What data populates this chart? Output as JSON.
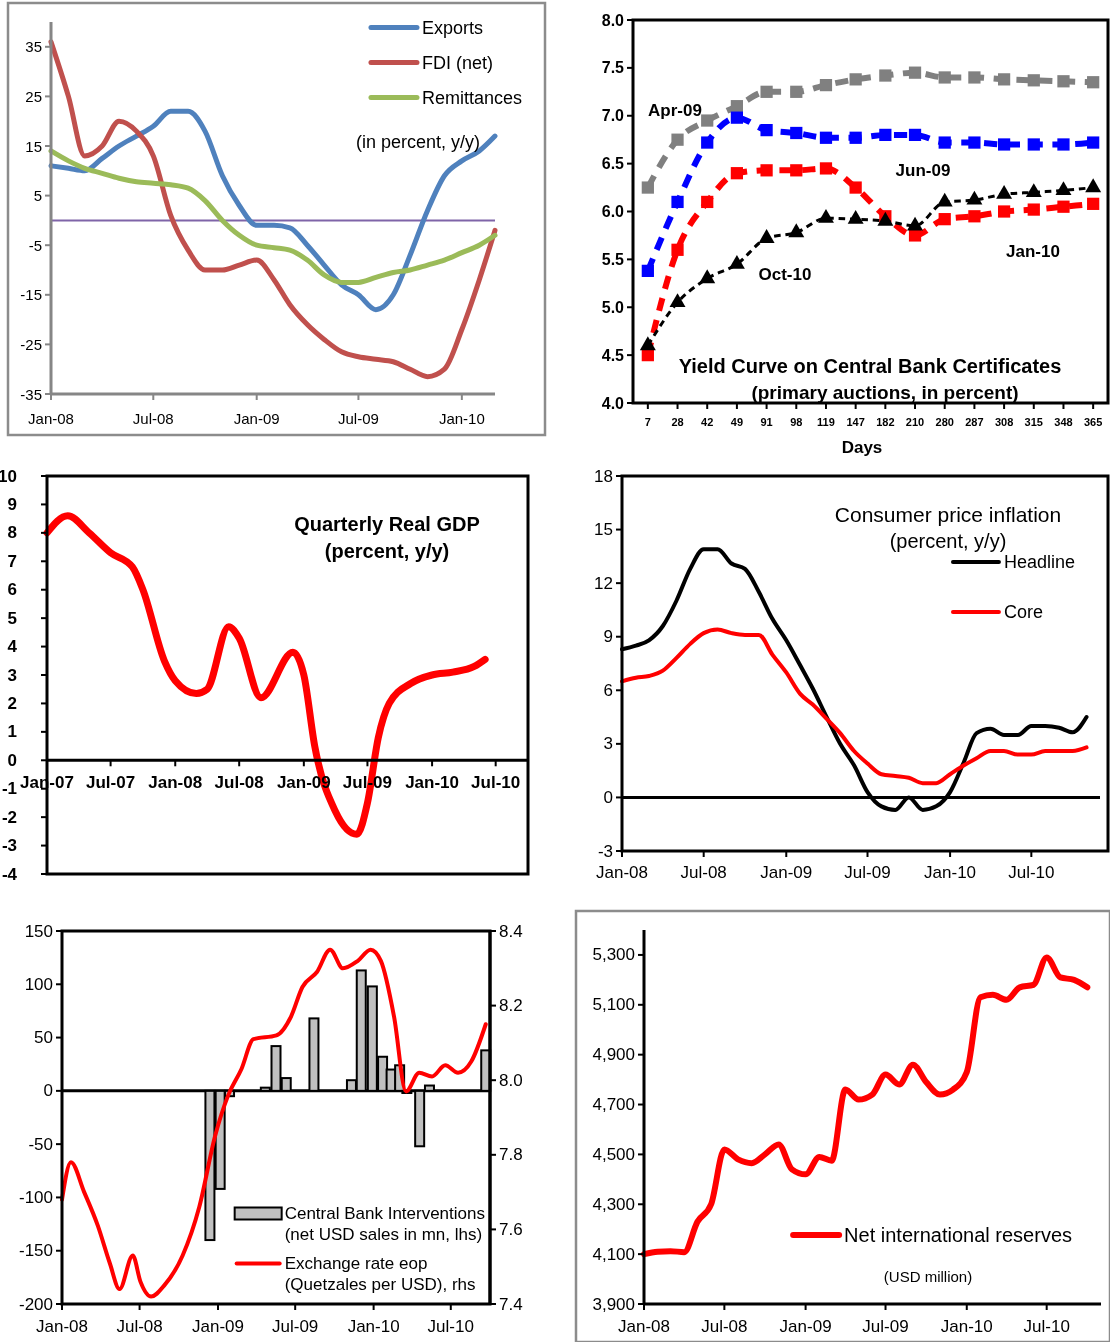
{
  "chart_data": [
    {
      "type": "line",
      "x": [
        "2008-01",
        "2008-02",
        "2008-03",
        "2008-04",
        "2008-05",
        "2008-06",
        "2008-07",
        "2008-08",
        "2008-09",
        "2008-10",
        "2008-11",
        "2008-12",
        "2009-01",
        "2009-02",
        "2009-03",
        "2009-04",
        "2009-05",
        "2009-06",
        "2009-07",
        "2009-08",
        "2009-09",
        "2009-10",
        "2009-11",
        "2009-12",
        "2010-01",
        "2010-02",
        "2010-03"
      ],
      "series": [
        {
          "name": "Exports",
          "color": "#4f81bd",
          "values": [
            11,
            10.5,
            10,
            12.5,
            15,
            17,
            19,
            22,
            22,
            18,
            9,
            3,
            -1,
            -1,
            -1.5,
            -5,
            -9,
            -13,
            -15,
            -18,
            -15,
            -7,
            2,
            9,
            12,
            14,
            17
          ]
        },
        {
          "name": "FDI (net)",
          "color": "#c0504d",
          "values": [
            36,
            25,
            13,
            15,
            20,
            18,
            13,
            1,
            -6,
            -10,
            -10,
            -9,
            -8,
            -12,
            -17,
            -21,
            -24,
            -26.5,
            -27.5,
            -28,
            -28.5,
            -30,
            -31.5,
            -30,
            -22,
            -12,
            -2
          ]
        },
        {
          "name": "Remittances",
          "color": "#9bbb59",
          "values": [
            14,
            12,
            10.5,
            9.5,
            8.5,
            7.8,
            7.5,
            7.2,
            6.5,
            4,
            0,
            -3,
            -5,
            -5.5,
            -6,
            -8,
            -11,
            -12.5,
            -12.5,
            -11.5,
            -10.5,
            -10,
            -9,
            -8,
            -6.5,
            -5,
            -3
          ]
        }
      ],
      "xlim": [
        "2008-01",
        "2010-03"
      ],
      "xticks": [
        {
          "value": "2008-01",
          "label": "Jan-08"
        },
        {
          "value": "2008-07",
          "label": "Jul-08"
        },
        {
          "value": "2009-01",
          "label": "Jan-09"
        },
        {
          "value": "2009-07",
          "label": "Jul-09"
        },
        {
          "value": "2010-01",
          "label": "Jan-10"
        }
      ],
      "ylim": [
        -35,
        40
      ],
      "yticks": [
        -35,
        -25,
        -15,
        -5,
        5,
        15,
        25,
        35
      ],
      "ref_lines": [
        {
          "axis": "y",
          "value": 0,
          "color": "#7f64a8"
        }
      ],
      "legend": "top right",
      "annotations": [
        "(in percent, y/y)"
      ]
    },
    {
      "type": "line",
      "title": "Yield Curve on Central Bank Certificates",
      "subtitle": "(primary auctions, in percent)",
      "xlabel": "Days",
      "categories": [
        "7",
        "28",
        "42",
        "49",
        "91",
        "98",
        "119",
        "147",
        "182",
        "210",
        "280",
        "287",
        "308",
        "315",
        "348",
        "365"
      ],
      "series": [
        {
          "name": "Apr-09",
          "color": "#808080",
          "values": [
            6.25,
            6.75,
            6.95,
            7.1,
            7.25,
            7.25,
            7.32,
            7.38,
            7.42,
            7.45,
            7.4,
            7.4,
            7.38,
            7.37,
            7.36,
            7.35
          ]
        },
        {
          "name": "Jun-09",
          "color": "#0000ff",
          "values": [
            5.38,
            6.1,
            6.72,
            6.98,
            6.85,
            6.82,
            6.77,
            6.77,
            6.8,
            6.8,
            6.72,
            6.72,
            6.7,
            6.7,
            6.7,
            6.72
          ]
        },
        {
          "name": "Jan-10",
          "color": "#ff0000",
          "values": [
            4.5,
            5.6,
            6.1,
            6.4,
            6.43,
            6.43,
            6.45,
            6.25,
            5.95,
            5.75,
            5.92,
            5.95,
            6.0,
            6.02,
            6.05,
            6.08
          ]
        },
        {
          "name": "Oct-10",
          "color": "#000000",
          "marker": "triangle",
          "values": [
            4.6,
            5.05,
            5.3,
            5.45,
            5.72,
            5.78,
            5.93,
            5.92,
            5.9,
            5.85,
            6.1,
            6.12,
            6.18,
            6.2,
            6.22,
            6.25
          ]
        }
      ],
      "ylim": [
        4,
        8
      ],
      "yticks": [
        {
          "value": 4,
          "label": "4.0"
        },
        4.5,
        {
          "value": 5,
          "label": "5.0"
        },
        5.5,
        {
          "value": 6,
          "label": "6.0"
        },
        6.5,
        {
          "value": 7,
          "label": "7.0"
        },
        7.5,
        {
          "value": 8,
          "label": "8.0"
        }
      ],
      "marker": "square",
      "line_style": "dashed"
    },
    {
      "type": "line",
      "title": "Quarterly Real GDP",
      "subtitle": "(percent, y/y)",
      "color": "#ff0000",
      "x": [
        "2007-01",
        "2007-03",
        "2007-05",
        "2007-07",
        "2007-09",
        "2007-10",
        "2007-12",
        "2008-01",
        "2008-03",
        "2008-04",
        "2008-06",
        "2008-07",
        "2008-09",
        "2008-12",
        "2009-01",
        "2009-02",
        "2009-04",
        "2009-06",
        "2009-07",
        "2009-08",
        "2009-09",
        "2009-11",
        "2010-01",
        "2010-03",
        "2010-05",
        "2010-06"
      ],
      "values": [
        8.0,
        8.6,
        8.0,
        7.3,
        6.8,
        6.0,
        3.5,
        2.8,
        2.35,
        2.5,
        4.7,
        4.3,
        2.2,
        3.8,
        3.0,
        0.5,
        -1.8,
        -2.6,
        -1.5,
        0.8,
        2.0,
        2.7,
        3.0,
        3.1,
        3.3,
        3.55
      ],
      "xlim": [
        "2007-01",
        "2010-10"
      ],
      "xticks": [
        {
          "value": "2007-01",
          "label": "Jan-07"
        },
        {
          "value": "2007-07",
          "label": "Jul-07"
        },
        {
          "value": "2008-01",
          "label": "Jan-08"
        },
        {
          "value": "2008-07",
          "label": "Jul-08"
        },
        {
          "value": "2009-01",
          "label": "Jan-09"
        },
        {
          "value": "2009-07",
          "label": "Jul-09"
        },
        {
          "value": "2010-01",
          "label": "Jan-10"
        },
        {
          "value": "2010-07",
          "label": "Jul-10"
        }
      ],
      "ylim": [
        -4,
        10
      ],
      "yticks": [
        -4,
        -3,
        -2,
        -1,
        0,
        1,
        2,
        3,
        4,
        5,
        6,
        7,
        8,
        9,
        10
      ]
    },
    {
      "type": "line",
      "title": "Consumer price inflation",
      "subtitle": "(percent, y/y)",
      "x": [
        "2008-01",
        "2008-02",
        "2008-03",
        "2008-04",
        "2008-05",
        "2008-06",
        "2008-07",
        "2008-08",
        "2008-09",
        "2008-10",
        "2008-11",
        "2008-12",
        "2009-01",
        "2009-02",
        "2009-03",
        "2009-04",
        "2009-05",
        "2009-06",
        "2009-07",
        "2009-08",
        "2009-09",
        "2009-10",
        "2009-11",
        "2009-12",
        "2010-01",
        "2010-02",
        "2010-03",
        "2010-04",
        "2010-05",
        "2010-06",
        "2010-07",
        "2010-08",
        "2010-09",
        "2010-10",
        "2010-11"
      ],
      "series": [
        {
          "name": "Headline",
          "color": "#000000",
          "values": [
            8.3,
            8.5,
            8.8,
            9.6,
            11.0,
            12.8,
            13.9,
            13.9,
            13.1,
            12.8,
            11.5,
            10.0,
            8.8,
            7.4,
            6.1,
            4.5,
            3.0,
            1.8,
            0.3,
            -0.5,
            -0.7,
            0.0,
            -0.7,
            -0.5,
            0.3,
            2.0,
            3.6,
            3.85,
            3.5,
            3.5,
            4.0,
            4.0,
            3.9,
            3.65,
            4.5
          ]
        },
        {
          "name": "Core",
          "color": "#ff0000",
          "values": [
            6.5,
            6.7,
            6.8,
            7.1,
            7.8,
            8.6,
            9.2,
            9.4,
            9.2,
            9.1,
            9.1,
            8.0,
            7.0,
            5.8,
            5.2,
            4.4,
            3.6,
            2.6,
            1.9,
            1.3,
            1.2,
            1.1,
            0.8,
            0.8,
            1.3,
            1.8,
            2.2,
            2.6,
            2.6,
            2.4,
            2.4,
            2.6,
            2.6,
            2.6,
            2.8
          ]
        }
      ],
      "xlim": [
        "2008-01",
        "2010-12"
      ],
      "xticks": [
        {
          "value": "2008-01",
          "label": "Jan-08"
        },
        {
          "value": "2008-07",
          "label": "Jul-08"
        },
        {
          "value": "2009-01",
          "label": "Jan-09"
        },
        {
          "value": "2009-07",
          "label": "Jul-09"
        },
        {
          "value": "2010-01",
          "label": "Jan-10"
        },
        {
          "value": "2010-07",
          "label": "Jul-10"
        }
      ],
      "ylim": [
        -3,
        18
      ],
      "yticks": [
        -3,
        0,
        3,
        6,
        9,
        12,
        15,
        18
      ],
      "ref_lines": [
        {
          "axis": "y",
          "value": 0,
          "color": "#000000"
        }
      ],
      "legend": "top right"
    },
    {
      "type": "bar",
      "series": [
        {
          "name": "Central Bank Interventions (net USD sales in mn, lhs)",
          "color": "#c0c0c0",
          "x": [
            "2008-12-13",
            "2009-01-06",
            "2009-01-28",
            "2009-04-22",
            "2009-05-17",
            "2009-06-10",
            "2009-08-14",
            "2009-11-10",
            "2009-12-03",
            "2009-12-29",
            "2010-01-22",
            "2010-02-11",
            "2010-03-03",
            "2010-03-20",
            "2010-04-19",
            "2010-05-12",
            "2010-09-21"
          ],
          "values": [
            -140,
            -92,
            -5,
            3,
            42,
            12,
            68,
            10,
            113,
            98,
            32,
            20,
            24,
            -2,
            -52,
            5,
            38
          ]
        },
        {
          "type": "line",
          "axis": "y2",
          "name": "Exchange rate eop (Quetzales per USD), rhs",
          "color": "#ff0000",
          "x": [
            "2008-01-01",
            "2008-01-22",
            "2008-02-22",
            "2008-03-25",
            "2008-04-22",
            "2008-05-15",
            "2008-06-15",
            "2008-07-03",
            "2008-07-28",
            "2008-08-28",
            "2008-10-10",
            "2008-11-18",
            "2008-12-25",
            "2009-01-25",
            "2009-02-25",
            "2009-03-25",
            "2009-05-18",
            "2009-06-21",
            "2009-07-18",
            "2009-08-21",
            "2009-09-21",
            "2009-10-21",
            "2009-11-25",
            "2009-12-25",
            "2010-01-18",
            "2010-02-18",
            "2010-03-18",
            "2010-04-18",
            "2010-05-18",
            "2010-06-18",
            "2010-07-18",
            "2010-08-18",
            "2010-09-21"
          ],
          "values": [
            7.68,
            7.78,
            7.7,
            7.61,
            7.51,
            7.44,
            7.53,
            7.46,
            7.42,
            7.45,
            7.53,
            7.66,
            7.85,
            7.96,
            8.03,
            8.11,
            8.12,
            8.17,
            8.25,
            8.29,
            8.35,
            8.3,
            8.32,
            8.35,
            8.32,
            8.17,
            7.97,
            8.02,
            8.01,
            8.04,
            8.02,
            8.05,
            8.15
          ]
        }
      ],
      "xlim": [
        "2008-01",
        "2010-10"
      ],
      "xticks": [
        {
          "value": "2008-01",
          "label": "Jan-08"
        },
        {
          "value": "2008-07",
          "label": "Jul-08"
        },
        {
          "value": "2009-01",
          "label": "Jan-09"
        },
        {
          "value": "2009-07",
          "label": "Jul-09"
        },
        {
          "value": "2010-01",
          "label": "Jan-10"
        },
        {
          "value": "2010-07",
          "label": "Jul-10"
        }
      ],
      "ylim": [
        -200,
        150
      ],
      "yticks": [
        -200,
        -150,
        -100,
        -50,
        0,
        50,
        100,
        150
      ],
      "y2lim": [
        7.4,
        8.4
      ],
      "y2ticks": [
        7.4,
        7.6,
        7.8,
        {
          "value": 8,
          "label": "8.0"
        },
        8.2,
        8.4
      ],
      "ref_lines": [
        {
          "axis": "y",
          "value": 0,
          "color": "#000000"
        }
      ],
      "legend": "bottom right"
    },
    {
      "type": "line",
      "x": [
        "2008-01",
        "2008-02",
        "2008-03",
        "2008-04",
        "2008-05",
        "2008-06",
        "2008-07",
        "2008-08",
        "2008-09",
        "2008-10",
        "2008-11",
        "2008-12",
        "2009-01",
        "2009-02",
        "2009-03",
        "2009-04",
        "2009-05",
        "2009-06",
        "2009-07",
        "2009-08",
        "2009-09",
        "2009-10",
        "2009-11",
        "2009-12",
        "2010-01",
        "2010-02",
        "2010-03",
        "2010-04",
        "2010-05",
        "2010-06",
        "2010-07",
        "2010-08",
        "2010-09",
        "2010-10"
      ],
      "series": [
        {
          "name": "Net international reserves",
          "color": "#ff0000",
          "values": [
            4100,
            4110,
            4112,
            4108,
            4230,
            4300,
            4520,
            4480,
            4465,
            4500,
            4540,
            4440,
            4420,
            4490,
            4475,
            4760,
            4720,
            4740,
            4820,
            4780,
            4860,
            4790,
            4740,
            4760,
            4830,
            5130,
            5140,
            5120,
            5170,
            5180,
            5290,
            5210,
            5200,
            5170
          ]
        }
      ],
      "xlim": [
        "2008-01",
        "2010-11"
      ],
      "xticks": [
        {
          "value": "2008-01",
          "label": "Jan-08"
        },
        {
          "value": "2008-07",
          "label": "Jul-08"
        },
        {
          "value": "2009-01",
          "label": "Jan-09"
        },
        {
          "value": "2009-07",
          "label": "Jul-09"
        },
        {
          "value": "2010-01",
          "label": "Jan-10"
        },
        {
          "value": "2010-07",
          "label": "Jul-10"
        }
      ],
      "ylim": [
        3900,
        5400
      ],
      "yticks": [
        {
          "value": 3900,
          "label": "3,900"
        },
        {
          "value": 4100,
          "label": "4,100"
        },
        {
          "value": 4300,
          "label": "4,300"
        },
        {
          "value": 4500,
          "label": "4,500"
        },
        {
          "value": 4700,
          "label": "4,700"
        },
        {
          "value": 4900,
          "label": "4,900"
        },
        {
          "value": 5100,
          "label": "5,100"
        },
        {
          "value": 5300,
          "label": "5,300"
        }
      ],
      "legend": "bottom right",
      "annotations": [
        "(USD million)"
      ]
    }
  ]
}
